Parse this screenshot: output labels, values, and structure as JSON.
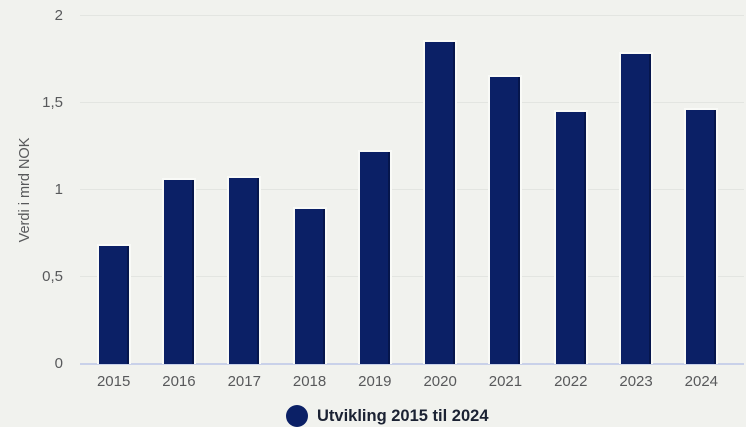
{
  "chart_data": {
    "type": "bar",
    "title": "",
    "xlabel": "",
    "ylabel": "Verdi i mrd NOK",
    "categories": [
      "2015",
      "2016",
      "2017",
      "2018",
      "2019",
      "2020",
      "2021",
      "2022",
      "2023",
      "2024"
    ],
    "values": [
      0.69,
      1.07,
      1.08,
      0.9,
      1.23,
      1.86,
      1.66,
      1.46,
      1.79,
      1.47
    ],
    "series_name": "Utvikling 2015 til 2024",
    "ylim": [
      0,
      2
    ],
    "yticks": [
      {
        "value": 0,
        "label": "0"
      },
      {
        "value": 0.5,
        "label": "0,5"
      },
      {
        "value": 1,
        "label": "1"
      },
      {
        "value": 1.5,
        "label": "1,5"
      },
      {
        "value": 2,
        "label": "2"
      }
    ],
    "grid": true,
    "legend_position": "bottom",
    "colors": {
      "bar": "#0b2066",
      "background": "#f1f2ee",
      "gridline": "#e3e5e1",
      "baseline": "#c9d1e9",
      "axis_text": "#58595b",
      "legend_text": "#1b2233"
    }
  },
  "legend": {
    "marker_color": "#0b2066",
    "label": "Utvikling 2015 til 2024"
  }
}
